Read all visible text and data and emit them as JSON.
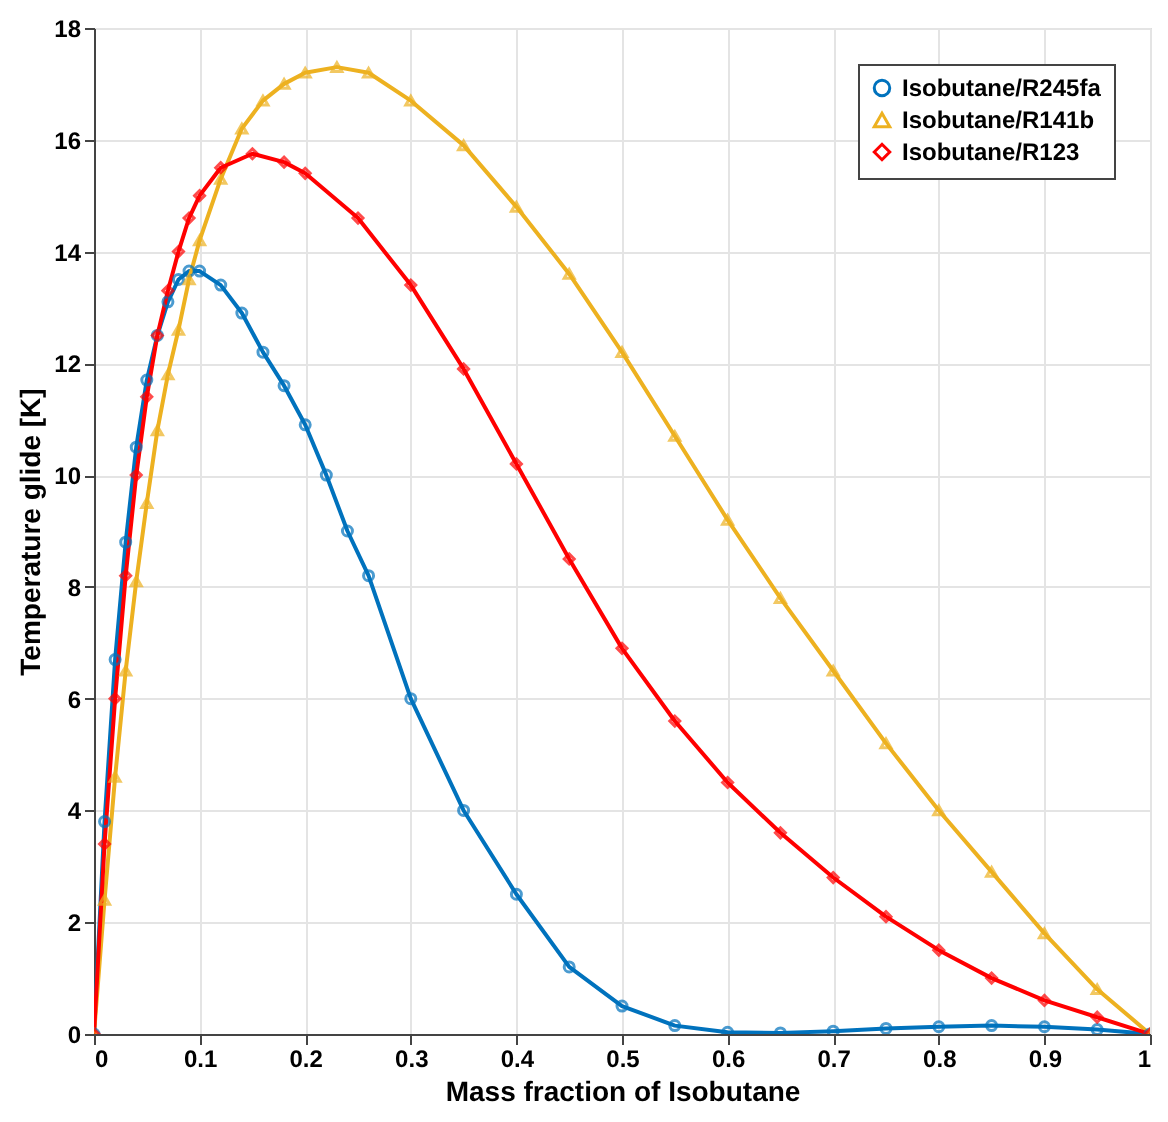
{
  "chart_data": {
    "type": "line",
    "xlabel": "Mass fraction of Isobutane",
    "ylabel": "Temperature glide [K]",
    "xlim": [
      0,
      1
    ],
    "xticks": [
      0,
      0.1,
      0.2,
      0.3,
      0.4,
      0.5,
      0.6,
      0.7,
      0.8,
      0.9,
      1
    ],
    "ylim": [
      0,
      18
    ],
    "yticks": [
      0,
      2,
      4,
      6,
      8,
      10,
      12,
      14,
      16,
      18
    ],
    "grid": true,
    "legend": "top right",
    "line_style": "solid",
    "series": [
      {
        "name": "Isobutane/R245fa",
        "color": "#0072bd",
        "marker": "circle",
        "x": [
          0,
          0.01,
          0.02,
          0.03,
          0.04,
          0.05,
          0.06,
          0.07,
          0.08,
          0.09,
          0.1,
          0.12,
          0.14,
          0.16,
          0.18,
          0.2,
          0.22,
          0.24,
          0.26,
          0.3,
          0.35,
          0.4,
          0.45,
          0.5,
          0.55,
          0.6,
          0.65,
          0.7,
          0.75,
          0.8,
          0.85,
          0.9,
          0.95,
          1
        ],
        "values": [
          0,
          3.8,
          6.7,
          8.8,
          10.5,
          11.7,
          12.5,
          13.1,
          13.5,
          13.65,
          13.65,
          13.4,
          12.9,
          12.2,
          11.6,
          10.9,
          10.0,
          9.0,
          8.2,
          6.0,
          4.0,
          2.5,
          1.2,
          0.5,
          0.15,
          0.03,
          0.02,
          0.05,
          0.1,
          0.13,
          0.15,
          0.13,
          0.08,
          0
        ]
      },
      {
        "name": "Isobutane/R141b",
        "color": "#edb120",
        "marker": "triangle",
        "x": [
          0,
          0.01,
          0.02,
          0.03,
          0.04,
          0.05,
          0.06,
          0.07,
          0.08,
          0.09,
          0.1,
          0.12,
          0.14,
          0.16,
          0.18,
          0.2,
          0.23,
          0.26,
          0.3,
          0.35,
          0.4,
          0.45,
          0.5,
          0.55,
          0.6,
          0.65,
          0.7,
          0.75,
          0.8,
          0.85,
          0.9,
          0.95,
          1
        ],
        "values": [
          0,
          2.4,
          4.6,
          6.5,
          8.1,
          9.5,
          10.8,
          11.8,
          12.6,
          13.5,
          14.2,
          15.3,
          16.2,
          16.7,
          17.0,
          17.2,
          17.3,
          17.2,
          16.7,
          15.9,
          14.8,
          13.6,
          12.2,
          10.7,
          9.2,
          7.8,
          6.5,
          5.2,
          4.0,
          2.9,
          1.8,
          0.8,
          0
        ]
      },
      {
        "name": "Isobutane/R123",
        "color": "#ff0000",
        "marker": "diamond",
        "x": [
          0,
          0.01,
          0.02,
          0.03,
          0.04,
          0.05,
          0.06,
          0.07,
          0.08,
          0.09,
          0.1,
          0.12,
          0.15,
          0.18,
          0.2,
          0.25,
          0.3,
          0.35,
          0.4,
          0.45,
          0.5,
          0.55,
          0.6,
          0.65,
          0.7,
          0.75,
          0.8,
          0.85,
          0.9,
          0.95,
          1
        ],
        "values": [
          0,
          3.4,
          6.0,
          8.2,
          10.0,
          11.4,
          12.5,
          13.3,
          14.0,
          14.6,
          15.0,
          15.5,
          15.75,
          15.6,
          15.4,
          14.6,
          13.4,
          11.9,
          10.2,
          8.5,
          6.9,
          5.6,
          4.5,
          3.6,
          2.8,
          2.1,
          1.5,
          1.0,
          0.6,
          0.3,
          0
        ]
      }
    ]
  }
}
